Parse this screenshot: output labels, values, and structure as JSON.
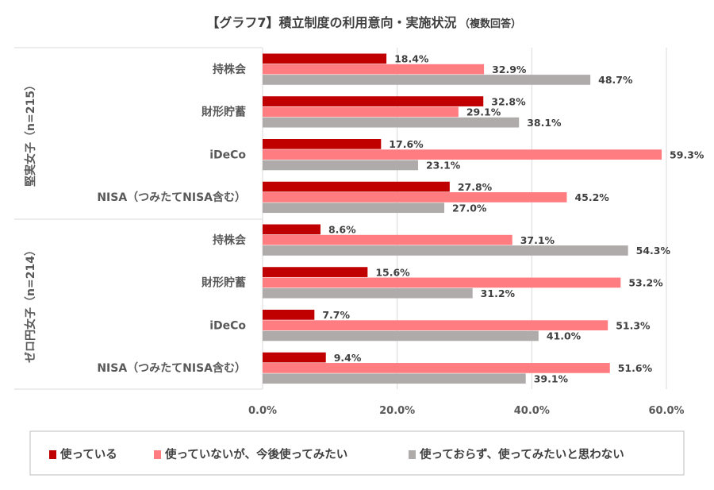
{
  "chart_data": {
    "type": "bar",
    "orientation": "horizontal",
    "title": "【グラフ7】積立制度の利用意向・実施状況",
    "title_note": "（複数回答）",
    "groups": [
      {
        "label": "堅実女子（n=215）",
        "categories": [
          "持株会",
          "財形貯蓄",
          "iDeCo",
          "NISA（つみたてNISA含む）"
        ]
      },
      {
        "label": "ゼロ円女子（n=214）",
        "categories": [
          "持株会",
          "財形貯蓄",
          "iDeCo",
          "NISA（つみたてNISA含む）"
        ]
      }
    ],
    "series": [
      {
        "name": "使っている",
        "color": "#C00000",
        "values": [
          18.4,
          32.8,
          17.6,
          27.8,
          8.6,
          15.6,
          7.7,
          9.4
        ]
      },
      {
        "name": "使っていないが、今後使ってみたい",
        "color": "#FF7C80",
        "values": [
          32.9,
          29.1,
          59.3,
          45.2,
          37.1,
          53.2,
          51.3,
          51.6
        ]
      },
      {
        "name": "使っておらず、使ってみたいと思わない",
        "color": "#AFABAB",
        "values": [
          48.7,
          38.1,
          23.1,
          27.0,
          54.3,
          31.2,
          41.0,
          39.1
        ]
      }
    ],
    "xlim": [
      0,
      60
    ],
    "xticks": [
      "0.0%",
      "20.0%",
      "40.0%",
      "60.0%"
    ],
    "grid": true,
    "legend_position": "bottom",
    "value_format": "percent-1dp"
  }
}
